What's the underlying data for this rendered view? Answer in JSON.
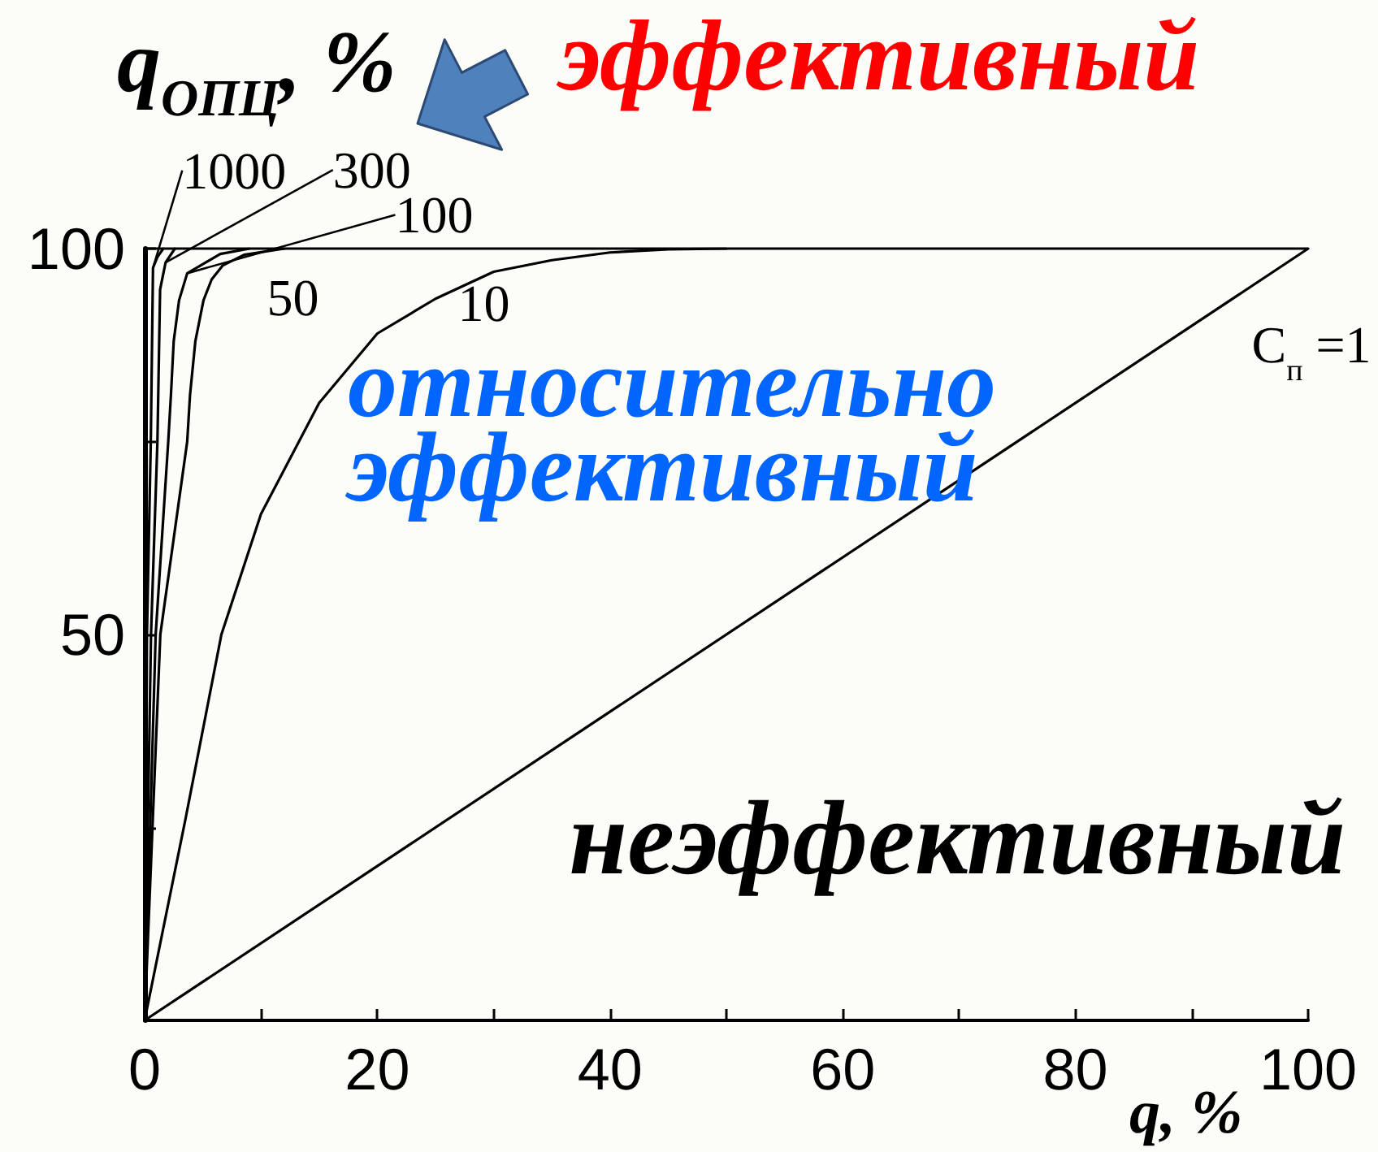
{
  "chart_data": {
    "type": "line",
    "xlabel": "q, %",
    "ylabel": "q$_{ОПЦ}$, %",
    "annotations": [
      "эффективный",
      "относительно эффективный",
      "неэффективный"
    ],
    "xlim": [
      0,
      100
    ],
    "ylim": [
      0,
      100
    ],
    "xticks": [
      0,
      {
        "value": 10,
        "label": null
      },
      20,
      {
        "value": 30,
        "label": null
      },
      40,
      {
        "value": 50,
        "label": null
      },
      60,
      {
        "value": 70,
        "label": null
      },
      80,
      {
        "value": 90,
        "label": null
      },
      100
    ],
    "yticks": [
      {
        "value": 0,
        "label": null
      },
      {
        "value": 25,
        "label": null
      },
      50,
      {
        "value": 75,
        "label": null
      },
      100
    ],
    "ref_lines": [
      {
        "axis": "y",
        "value": 100,
        "color": "#000000"
      }
    ],
    "series": [
      {
        "name": "1000",
        "color": "#000000",
        "x": [
          0,
          0.2,
          0.53,
          0.72,
          1.1,
          1.6
        ],
        "values": [
          0,
          50,
          75,
          97.5,
          98.9,
          100
        ]
      },
      {
        "name": "300",
        "color": "#000000",
        "x": [
          0,
          0.55,
          1.1,
          1.33,
          1.8,
          2.6
        ],
        "values": [
          0,
          50,
          75,
          94.7,
          98.2,
          100
        ]
      },
      {
        "name": "100",
        "color": "#000000",
        "x": [
          0,
          0.95,
          2.03,
          2.26,
          2.5,
          2.96,
          3.66,
          4.8,
          6.5,
          9
        ],
        "values": [
          0,
          50,
          75,
          81,
          88,
          93.3,
          96.8,
          97.8,
          99.3,
          100
        ]
      },
      {
        "name": "50",
        "color": "#000000",
        "x": [
          0,
          1.35,
          3.66,
          3.9,
          4.36,
          5.06,
          5.76,
          6.7,
          8.55,
          12
        ],
        "values": [
          0,
          50,
          75,
          81,
          88,
          93.3,
          96,
          97.8,
          99.2,
          100
        ]
      },
      {
        "name": "10",
        "color": "#000000",
        "x": [
          0,
          3.5,
          6.6,
          10,
          15,
          20,
          25,
          30,
          35,
          40,
          45,
          50
        ],
        "values": [
          0,
          26,
          50,
          65.6,
          80,
          89,
          93.5,
          97,
          98.5,
          99.5,
          99.9,
          100
        ]
      },
      {
        "name": "С$_{п}$ =1",
        "color": "#000000",
        "x": [
          0,
          100
        ],
        "values": [
          0,
          100
        ]
      }
    ]
  }
}
